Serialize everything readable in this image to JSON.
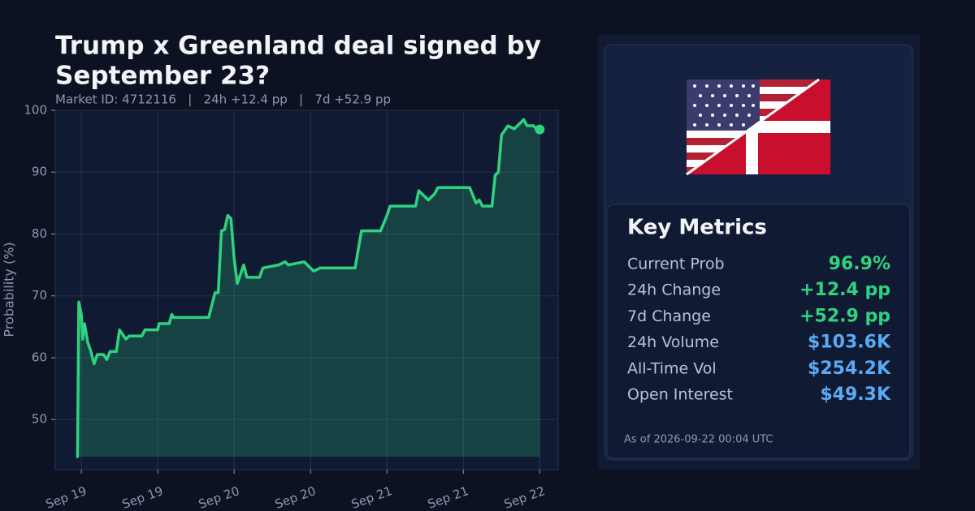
{
  "chart_data": {
    "type": "line",
    "title_lines": [
      "Trump x Greenland deal signed by",
      "September 23?"
    ],
    "subtitle": "Market ID: 4712116   |   24h +12.4 pp   |   7d +52.9 pp",
    "ylabel": "Probability (%)",
    "series": [
      {
        "name": "Probability",
        "color": "#2fd27f",
        "x": [
          -0.8,
          -0.6,
          -0.4,
          0,
          0.2,
          0.5,
          1,
          1.5,
          2,
          2.5,
          3.5,
          4,
          4.5,
          5.5,
          6,
          7,
          7.5,
          9.5,
          10,
          12,
          12.2,
          13.8,
          14.2,
          14.5,
          20,
          20.5,
          21,
          21.5,
          22,
          22.5,
          23,
          23.5,
          24,
          24.5,
          25,
          25.5,
          26,
          28,
          28.5,
          31,
          32,
          32.5,
          35,
          36,
          36.5,
          37.5,
          43,
          44,
          47,
          48,
          48.5,
          52.5,
          53,
          54.5,
          55.5,
          56,
          61,
          62,
          62.5,
          63,
          64.5,
          65,
          65.5,
          66,
          67,
          68,
          69.5,
          70,
          71,
          71.5,
          72
        ],
        "values": [
          44,
          44,
          69,
          67,
          63,
          65.5,
          62.5,
          61,
          59,
          60.5,
          60.5,
          59.7,
          61,
          61,
          64.5,
          63,
          63.5,
          63.5,
          64.5,
          64.5,
          65.5,
          65.5,
          67,
          66.5,
          66.5,
          68.5,
          70.5,
          70.5,
          80.5,
          80.7,
          83,
          82.5,
          76,
          72,
          73.5,
          75,
          73,
          73,
          74.5,
          75,
          75.5,
          75,
          75.5,
          74.5,
          74,
          74.5,
          74.5,
          80.5,
          80.5,
          83,
          84.5,
          84.5,
          87,
          85.5,
          86.5,
          87.5,
          87.5,
          85,
          85.5,
          84.5,
          84.5,
          89.5,
          90,
          96,
          97.5,
          97,
          98.5,
          97.5,
          97.5,
          97,
          96.9
        ]
      }
    ],
    "xlim": [
      -4.1,
      74.9
    ],
    "xticks": [
      {
        "value": 0,
        "label": "Sep 19"
      },
      {
        "value": 12,
        "label": "Sep 19"
      },
      {
        "value": 24,
        "label": "Sep 20"
      },
      {
        "value": 36,
        "label": "Sep 20"
      },
      {
        "value": 48,
        "label": "Sep 21"
      },
      {
        "value": 60,
        "label": "Sep 21"
      },
      {
        "value": 72,
        "label": "Sep 22"
      }
    ],
    "ylim": [
      41.9,
      100
    ],
    "yticks": [
      50,
      60,
      70,
      80,
      90,
      100
    ],
    "grid": true
  },
  "panel": {
    "heading": "Key Metrics",
    "metrics": [
      {
        "label": "Current Prob",
        "value": "96.9%",
        "color": "#2fd27f"
      },
      {
        "label": "24h Change",
        "value": "+12.4 pp",
        "color": "#2fd27f"
      },
      {
        "label": "7d Change",
        "value": "+52.9 pp",
        "color": "#2fd27f"
      },
      {
        "label": "24h Volume",
        "value": "$103.6K",
        "color": "#5aaaf5"
      },
      {
        "label": "All-Time Vol",
        "value": "$254.2K",
        "color": "#5aaaf5"
      },
      {
        "label": "Open Interest",
        "value": "$49.3K",
        "color": "#5aaaf5"
      }
    ],
    "footnote": "As of 2026-09-22 00:04 UTC"
  }
}
